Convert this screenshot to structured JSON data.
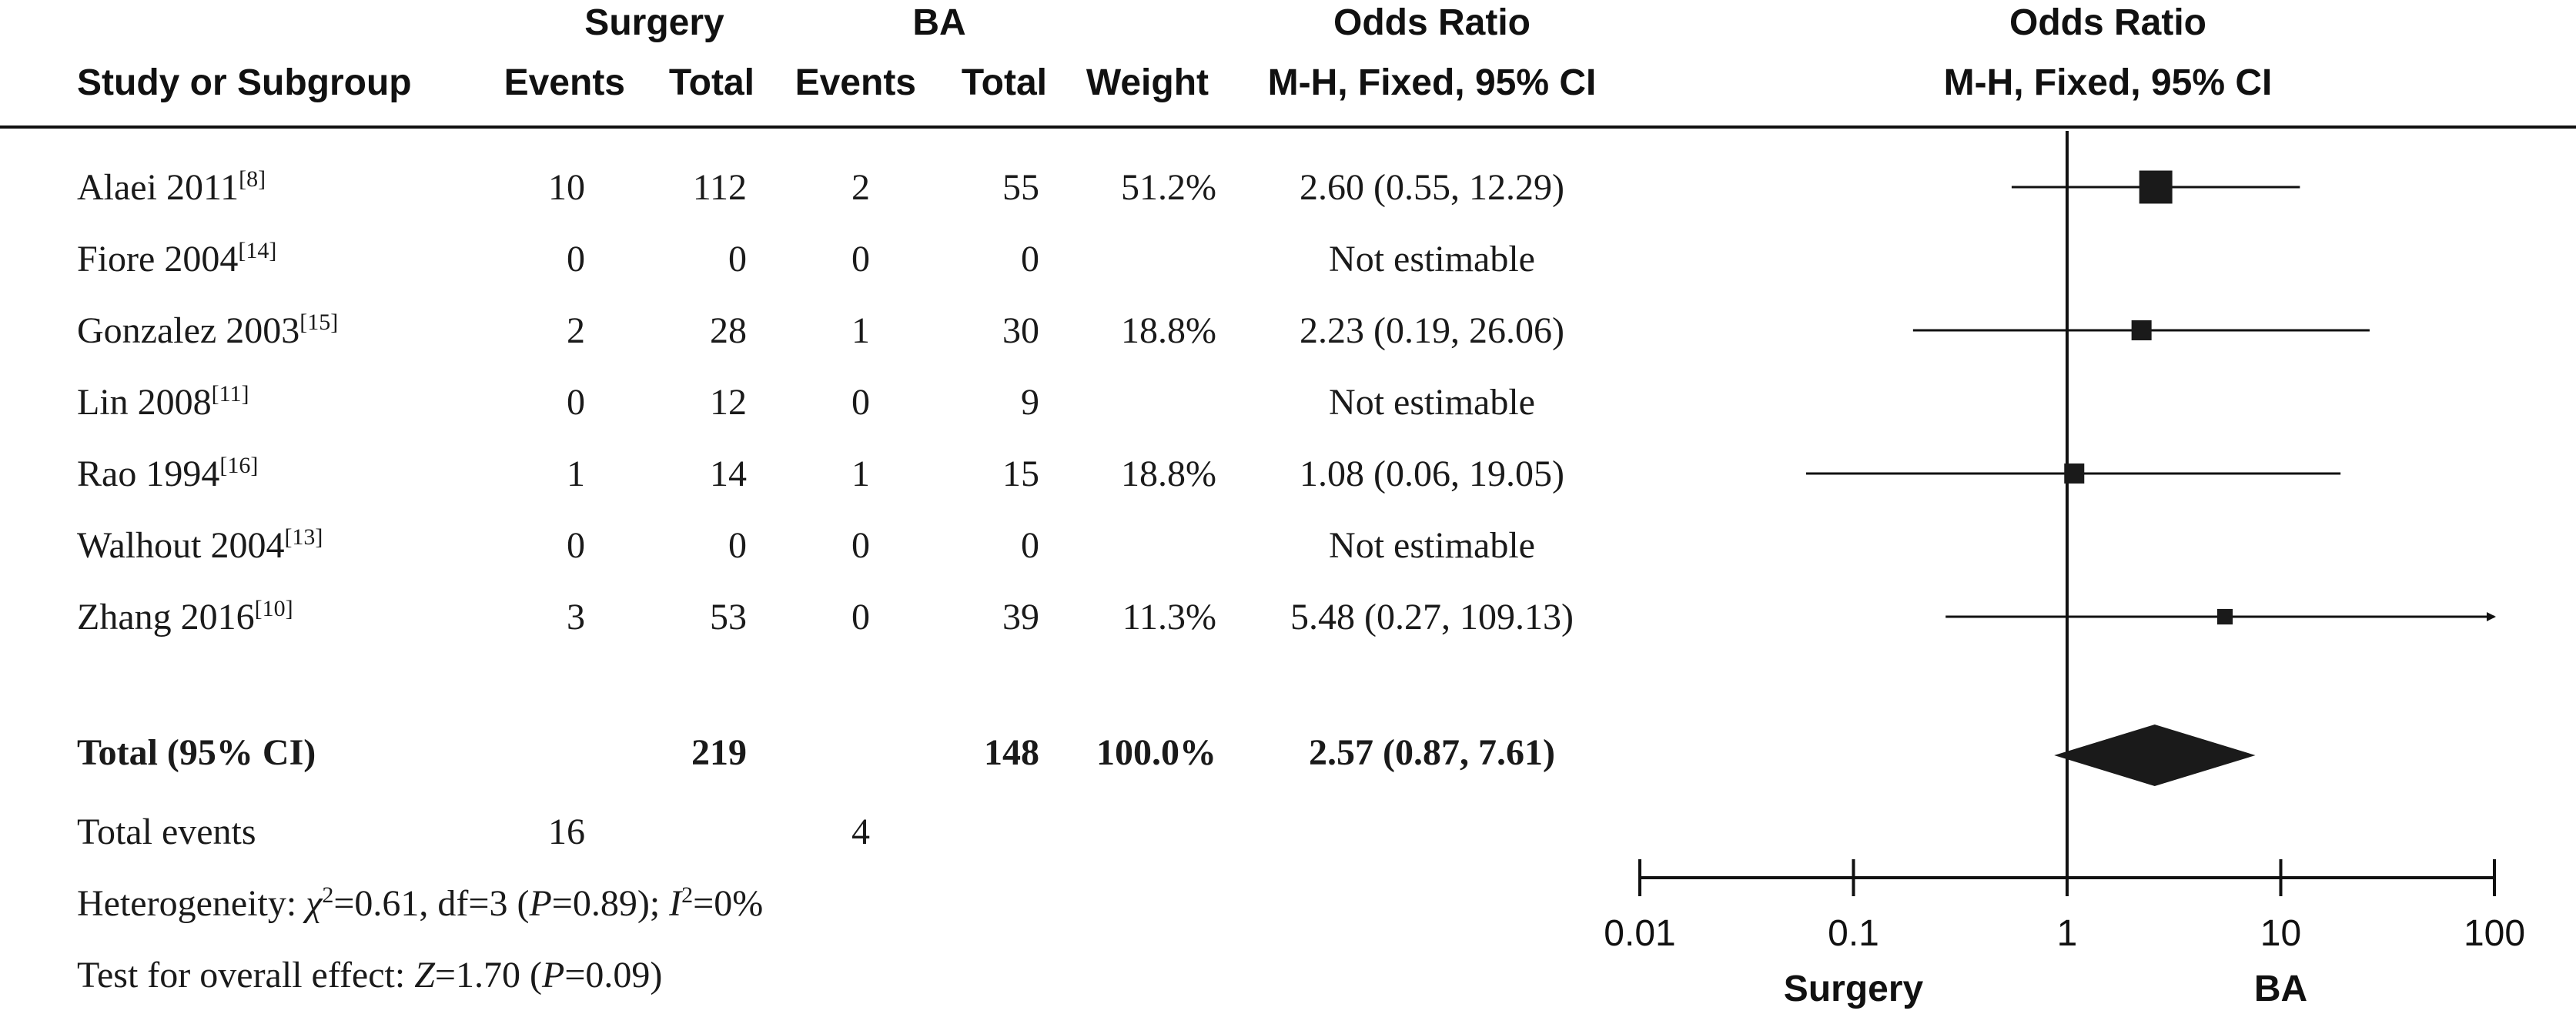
{
  "header": {
    "group1": "Surgery",
    "group2": "BA",
    "or_title": "Odds Ratio",
    "or_method": "M-H, Fixed, 95% CI",
    "plot_title": "Odds Ratio",
    "plot_method": "M-H, Fixed, 95% CI",
    "study_col": "Study or Subgroup",
    "events": "Events",
    "total": "Total",
    "weight": "Weight"
  },
  "studies": [
    {
      "name": "Alaei 2011",
      "ref": "[8]",
      "e1": "10",
      "t1": "112",
      "e2": "2",
      "t2": "55",
      "weight": "51.2%",
      "ci_text": "2.60 (0.55, 12.29)"
    },
    {
      "name": "Fiore 2004",
      "ref": "[14]",
      "e1": "0",
      "t1": "0",
      "e2": "0",
      "t2": "0",
      "weight": "",
      "ci_text": "Not estimable"
    },
    {
      "name": "Gonzalez 2003",
      "ref": "[15]",
      "e1": "2",
      "t1": "28",
      "e2": "1",
      "t2": "30",
      "weight": "18.8%",
      "ci_text": "2.23 (0.19, 26.06)"
    },
    {
      "name": "Lin 2008",
      "ref": "[11]",
      "e1": "0",
      "t1": "12",
      "e2": "0",
      "t2": "9",
      "weight": "",
      "ci_text": "Not estimable"
    },
    {
      "name": "Rao 1994",
      "ref": "[16]",
      "e1": "1",
      "t1": "14",
      "e2": "1",
      "t2": "15",
      "weight": "18.8%",
      "ci_text": "1.08 (0.06, 19.05)"
    },
    {
      "name": "Walhout 2004",
      "ref": "[13]",
      "e1": "0",
      "t1": "0",
      "e2": "0",
      "t2": "0",
      "weight": "",
      "ci_text": "Not estimable"
    },
    {
      "name": "Zhang 2016",
      "ref": "[10]",
      "e1": "3",
      "t1": "53",
      "e2": "0",
      "t2": "39",
      "weight": "11.3%",
      "ci_text": "5.48 (0.27, 109.13)"
    }
  ],
  "total_row": {
    "label": "Total (95% CI)",
    "t1": "219",
    "t2": "148",
    "weight": "100.0%",
    "ci_text": "2.57 (0.87, 7.61)"
  },
  "total_events": {
    "label": "Total events",
    "e1": "16",
    "e2": "4"
  },
  "heterogeneity": {
    "prefix": "Heterogeneity: ",
    "chi_symbol": "χ",
    "chi_sup": "2",
    "chi_rest": "=0.61, df=3 (",
    "p_symbol": "P",
    "p_rest": "=0.89); ",
    "i_symbol": "I",
    "i_sup": "2",
    "i_rest": "=0%"
  },
  "overall": {
    "prefix": "Test for overall effect: ",
    "z_symbol": "Z",
    "z_rest": "=1.70 (",
    "p_symbol": "P",
    "p_rest": "=0.09)"
  },
  "chart_data": {
    "type": "forest",
    "scale": "log",
    "xlim": [
      0.01,
      100
    ],
    "ticks": [
      0.01,
      0.1,
      1,
      10,
      100
    ],
    "tick_labels": [
      "0.01",
      "0.1",
      "1",
      "10",
      "100"
    ],
    "reference_line": 1,
    "favours_left": "Surgery",
    "favours_right": "BA",
    "studies": [
      {
        "name": "Alaei 2011",
        "or": 2.6,
        "lower": 0.55,
        "upper": 12.29,
        "weight": 51.2
      },
      {
        "name": "Fiore 2004",
        "or": null,
        "lower": null,
        "upper": null,
        "weight": null
      },
      {
        "name": "Gonzalez 2003",
        "or": 2.23,
        "lower": 0.19,
        "upper": 26.06,
        "weight": 18.8
      },
      {
        "name": "Lin 2008",
        "or": null,
        "lower": null,
        "upper": null,
        "weight": null
      },
      {
        "name": "Rao 1994",
        "or": 1.08,
        "lower": 0.06,
        "upper": 19.05,
        "weight": 18.8
      },
      {
        "name": "Walhout 2004",
        "or": null,
        "lower": null,
        "upper": null,
        "weight": null
      },
      {
        "name": "Zhang 2016",
        "or": 5.48,
        "lower": 0.27,
        "upper": 109.13,
        "weight": 11.3
      }
    ],
    "pooled": {
      "or": 2.57,
      "lower": 0.87,
      "upper": 7.61
    }
  },
  "colors": {
    "ink": "#111111",
    "mark": "#1a1a1a"
  }
}
